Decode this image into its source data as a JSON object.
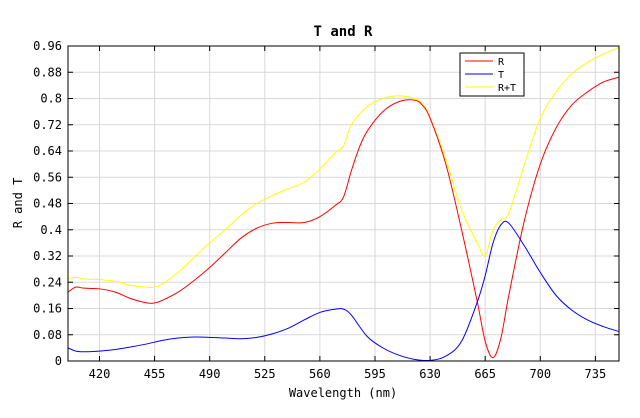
{
  "chart_data": {
    "type": "line",
    "title": "T and R",
    "xlabel": "Wavelength (nm)",
    "ylabel": "R and T",
    "xlim": [
      400,
      750
    ],
    "ylim": [
      0,
      0.96
    ],
    "xticks": [
      420,
      455,
      490,
      525,
      560,
      595,
      630,
      665,
      700,
      735
    ],
    "xtick_labels": [
      "420",
      "455",
      "490",
      "525",
      "560",
      "595",
      "630",
      "665",
      "700",
      "735"
    ],
    "yticks": [
      0,
      0.08,
      0.16,
      0.24,
      0.32,
      0.4,
      0.48,
      0.56,
      0.64,
      0.72,
      0.8,
      0.88,
      0.96
    ],
    "ytick_labels": [
      "0",
      "0.08",
      "0.16",
      "0.24",
      "0.32",
      "0.4",
      "0.48",
      "0.56",
      "0.64",
      "0.72",
      "0.8",
      "0.88",
      "0.96"
    ],
    "grid": true,
    "legend_position": "top-right",
    "series": [
      {
        "name": "R",
        "color": "#ff0000",
        "x": [
          400,
          405,
          410,
          420,
          430,
          440,
          450,
          455,
          460,
          470,
          480,
          490,
          500,
          510,
          520,
          530,
          540,
          550,
          560,
          570,
          575,
          580,
          585,
          590,
          600,
          610,
          620,
          625,
          630,
          640,
          650,
          660,
          665,
          670,
          675,
          680,
          690,
          700,
          710,
          720,
          730,
          740,
          750
        ],
        "y": [
          0.21,
          0.225,
          0.222,
          0.22,
          0.21,
          0.19,
          0.177,
          0.177,
          0.185,
          0.21,
          0.245,
          0.285,
          0.33,
          0.375,
          0.405,
          0.42,
          0.422,
          0.422,
          0.44,
          0.475,
          0.5,
          0.58,
          0.65,
          0.7,
          0.76,
          0.79,
          0.795,
          0.78,
          0.74,
          0.6,
          0.4,
          0.18,
          0.06,
          0.01,
          0.07,
          0.2,
          0.43,
          0.6,
          0.71,
          0.78,
          0.82,
          0.85,
          0.865
        ]
      },
      {
        "name": "T",
        "color": "#0000ff",
        "x": [
          400,
          405,
          410,
          420,
          430,
          440,
          450,
          460,
          470,
          480,
          490,
          500,
          510,
          520,
          530,
          540,
          550,
          560,
          570,
          575,
          580,
          590,
          600,
          610,
          620,
          630,
          640,
          650,
          660,
          665,
          670,
          675,
          680,
          690,
          700,
          710,
          720,
          730,
          740,
          750
        ],
        "y": [
          0.04,
          0.03,
          0.028,
          0.03,
          0.035,
          0.043,
          0.052,
          0.063,
          0.07,
          0.073,
          0.072,
          0.07,
          0.068,
          0.072,
          0.083,
          0.1,
          0.125,
          0.148,
          0.158,
          0.158,
          0.14,
          0.075,
          0.04,
          0.018,
          0.005,
          0.002,
          0.015,
          0.06,
          0.18,
          0.26,
          0.36,
          0.415,
          0.42,
          0.35,
          0.27,
          0.2,
          0.155,
          0.125,
          0.105,
          0.09
        ]
      },
      {
        "name": "R+T",
        "color": "#ffff00",
        "x": [
          400,
          405,
          410,
          420,
          430,
          440,
          450,
          455,
          460,
          470,
          480,
          490,
          500,
          510,
          520,
          530,
          540,
          550,
          560,
          570,
          575,
          580,
          590,
          600,
          610,
          620,
          625,
          630,
          640,
          650,
          660,
          665,
          670,
          675,
          680,
          690,
          700,
          710,
          720,
          730,
          740,
          750
        ],
        "y": [
          0.25,
          0.255,
          0.25,
          0.248,
          0.243,
          0.23,
          0.225,
          0.225,
          0.235,
          0.27,
          0.315,
          0.36,
          0.4,
          0.445,
          0.48,
          0.505,
          0.525,
          0.545,
          0.585,
          0.635,
          0.655,
          0.72,
          0.775,
          0.8,
          0.808,
          0.8,
          0.785,
          0.742,
          0.615,
          0.46,
          0.36,
          0.32,
          0.4,
          0.43,
          0.45,
          0.6,
          0.74,
          0.82,
          0.875,
          0.91,
          0.935,
          0.955
        ]
      }
    ]
  }
}
